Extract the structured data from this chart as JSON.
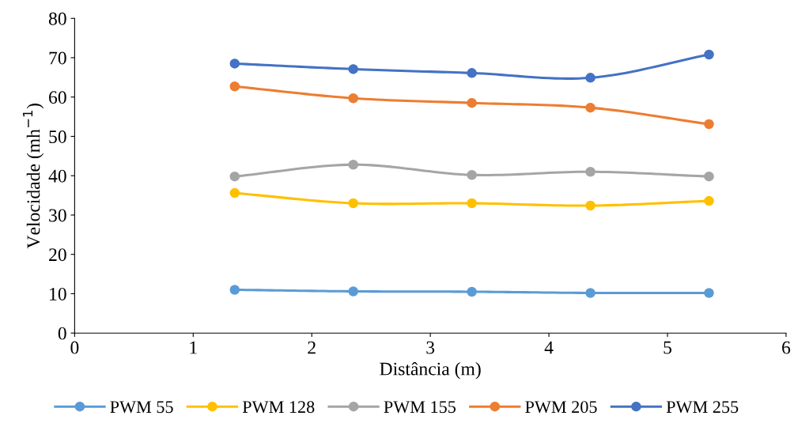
{
  "chart_data": {
    "type": "line",
    "xlabel": "Distância (m)",
    "ylabel": "Velocidade (mh$^{−1}$)",
    "x": [
      1.35,
      2.35,
      3.35,
      4.35,
      5.35
    ],
    "series": [
      {
        "name": "PWM 55",
        "color": "#5b9bd5",
        "values": [
          11.0,
          10.6,
          10.5,
          10.2,
          10.2
        ]
      },
      {
        "name": "PWM 128",
        "color": "#ffc000",
        "values": [
          35.6,
          33.0,
          33.0,
          32.4,
          33.6
        ]
      },
      {
        "name": "PWM 155",
        "color": "#a5a5a5",
        "values": [
          39.8,
          42.8,
          40.2,
          41.0,
          39.8
        ]
      },
      {
        "name": "PWM 205",
        "color": "#ed7d31",
        "values": [
          62.7,
          59.7,
          58.5,
          57.3,
          53.1
        ]
      },
      {
        "name": "PWM 255",
        "color": "#4472c4",
        "values": [
          68.5,
          67.1,
          66.1,
          64.9,
          70.8
        ]
      }
    ],
    "xlim": [
      0,
      6
    ],
    "xticks": [
      0,
      1,
      2,
      3,
      4,
      5,
      6
    ],
    "ylim": [
      0,
      80
    ],
    "yticks": [
      0,
      10,
      20,
      30,
      40,
      50,
      60,
      70,
      80
    ],
    "grid": false,
    "legend": "bottom",
    "marker": "circle",
    "line_style": "solid"
  }
}
